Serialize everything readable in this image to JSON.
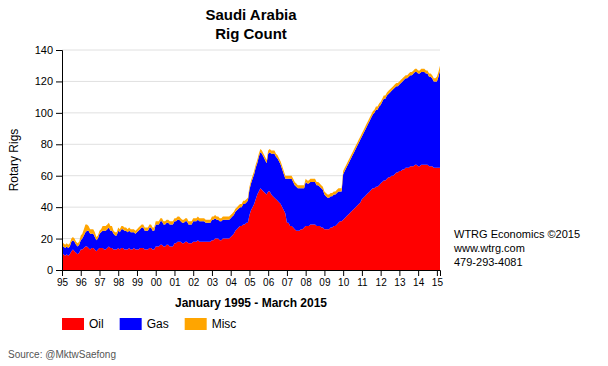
{
  "chart_data": {
    "type": "area",
    "stacked": true,
    "title": "Saudi Arabia",
    "subtitle": "Rig Count",
    "xlabel": "January 1995 - March 2015",
    "ylabel": "Rotary Rigs",
    "annotations": [
      "WTRG Economics ©2015",
      "www.wtrg.com",
      "479-293-4081",
      "Source: @MktwSaefong"
    ],
    "ylim": [
      0,
      140
    ],
    "yticks": [
      0,
      20,
      40,
      60,
      80,
      100,
      120,
      140
    ],
    "grid": true,
    "legend": "bottom",
    "categories": [
      "95",
      null,
      null,
      null,
      null,
      null,
      null,
      null,
      null,
      null,
      null,
      null,
      "96",
      null,
      null,
      null,
      null,
      null,
      null,
      null,
      null,
      null,
      null,
      null,
      "97",
      null,
      null,
      null,
      null,
      null,
      null,
      null,
      null,
      null,
      null,
      null,
      "98",
      null,
      null,
      null,
      null,
      null,
      null,
      null,
      null,
      null,
      null,
      null,
      "99",
      null,
      null,
      null,
      null,
      null,
      null,
      null,
      null,
      null,
      null,
      null,
      "00",
      null,
      null,
      null,
      null,
      null,
      null,
      null,
      null,
      null,
      null,
      null,
      "01",
      null,
      null,
      null,
      null,
      null,
      null,
      null,
      null,
      null,
      null,
      null,
      "02",
      null,
      null,
      null,
      null,
      null,
      null,
      null,
      null,
      null,
      null,
      null,
      "03",
      null,
      null,
      null,
      null,
      null,
      null,
      null,
      null,
      null,
      null,
      null,
      "04",
      null,
      null,
      null,
      null,
      null,
      null,
      null,
      null,
      null,
      null,
      null,
      "05",
      null,
      null,
      null,
      null,
      null,
      null,
      null,
      null,
      null,
      null,
      null,
      "06",
      null,
      null,
      null,
      null,
      null,
      null,
      null,
      null,
      null,
      null,
      null,
      "07",
      null,
      null,
      null,
      null,
      null,
      null,
      null,
      null,
      null,
      null,
      null,
      "08",
      null,
      null,
      null,
      null,
      null,
      null,
      null,
      null,
      null,
      null,
      null,
      "09",
      null,
      null,
      null,
      null,
      null,
      null,
      null,
      null,
      null,
      null,
      null,
      "10",
      null,
      null,
      null,
      null,
      null,
      null,
      null,
      null,
      null,
      null,
      null,
      "11",
      null,
      null,
      null,
      null,
      null,
      null,
      null,
      null,
      null,
      null,
      null,
      "12",
      null,
      null,
      null,
      null,
      null,
      null,
      null,
      null,
      null,
      null,
      null,
      "13",
      null,
      null,
      null,
      null,
      null,
      null,
      null,
      null,
      null,
      null,
      null,
      "14",
      null,
      null,
      null,
      null,
      null,
      null,
      null,
      null,
      null,
      null,
      null,
      "15",
      null,
      null
    ],
    "series": [
      {
        "name": "Oil",
        "color": "#FF0000",
        "values": [
          10,
          10,
          9,
          10,
          9,
          10,
          12,
          13,
          12,
          11,
          10,
          11,
          13,
          13,
          14,
          15,
          15,
          14,
          13,
          14,
          14,
          13,
          12,
          13,
          14,
          14,
          14,
          13,
          13,
          14,
          15,
          14,
          14,
          13,
          13,
          13,
          14,
          13,
          14,
          14,
          13,
          13,
          13,
          14,
          13,
          13,
          14,
          13,
          13,
          13,
          14,
          14,
          14,
          13,
          13,
          13,
          14,
          14,
          13,
          13,
          15,
          15,
          15,
          16,
          16,
          15,
          15,
          16,
          16,
          15,
          15,
          15,
          17,
          17,
          18,
          18,
          18,
          17,
          17,
          18,
          18,
          17,
          17,
          17,
          18,
          18,
          18,
          19,
          18,
          18,
          18,
          18,
          18,
          18,
          18,
          18,
          19,
          19,
          20,
          20,
          20,
          19,
          19,
          20,
          20,
          20,
          20,
          20,
          21,
          22,
          23,
          25,
          26,
          27,
          28,
          28,
          29,
          29,
          30,
          30,
          35,
          38,
          40,
          42,
          45,
          48,
          50,
          52,
          51,
          50,
          49,
          48,
          50,
          50,
          48,
          47,
          46,
          45,
          44,
          43,
          42,
          40,
          38,
          36,
          30,
          30,
          28,
          28,
          27,
          26,
          25,
          25,
          25,
          26,
          26,
          27,
          28,
          28,
          28,
          29,
          29,
          29,
          29,
          28,
          28,
          28,
          27,
          27,
          26,
          26,
          26,
          26,
          27,
          27,
          28,
          28,
          29,
          30,
          31,
          31,
          32,
          33,
          34,
          35,
          36,
          37,
          38,
          39,
          40,
          41,
          42,
          43,
          45,
          46,
          47,
          48,
          49,
          50,
          51,
          52,
          52,
          53,
          53,
          54,
          55,
          56,
          57,
          57,
          58,
          59,
          59,
          60,
          60,
          61,
          62,
          62,
          63,
          63,
          64,
          64,
          65,
          65,
          65,
          66,
          66,
          66,
          67,
          67,
          66,
          66,
          67,
          67,
          67,
          67,
          67,
          66,
          66,
          66,
          65,
          65,
          65,
          65,
          65
        ]
      },
      {
        "name": "Gas",
        "color": "#0000FF",
        "values": [
          5,
          5,
          5,
          5,
          5,
          5,
          6,
          6,
          6,
          5,
          5,
          5,
          6,
          7,
          8,
          9,
          10,
          11,
          10,
          9,
          9,
          8,
          7,
          7,
          9,
          10,
          11,
          12,
          12,
          12,
          12,
          11,
          11,
          10,
          9,
          9,
          11,
          11,
          12,
          12,
          12,
          12,
          11,
          11,
          11,
          11,
          10,
          10,
          11,
          12,
          12,
          13,
          13,
          12,
          12,
          12,
          13,
          13,
          12,
          12,
          14,
          14,
          14,
          15,
          15,
          14,
          14,
          14,
          14,
          14,
          14,
          14,
          14,
          14,
          14,
          14,
          13,
          13,
          13,
          13,
          13,
          12,
          12,
          12,
          13,
          13,
          13,
          13,
          13,
          13,
          13,
          13,
          12,
          12,
          12,
          12,
          13,
          13,
          13,
          12,
          12,
          12,
          12,
          12,
          12,
          12,
          12,
          12,
          12,
          12,
          12,
          12,
          12,
          12,
          12,
          12,
          13,
          13,
          13,
          14,
          16,
          17,
          18,
          19,
          20,
          20,
          22,
          23,
          23,
          22,
          21,
          20,
          24,
          25,
          26,
          27,
          28,
          27,
          27,
          26,
          25,
          24,
          23,
          22,
          28,
          28,
          30,
          30,
          29,
          28,
          28,
          27,
          27,
          26,
          26,
          25,
          28,
          27,
          27,
          27,
          27,
          27,
          27,
          26,
          26,
          25,
          25,
          24,
          22,
          21,
          20,
          20,
          20,
          20,
          20,
          20,
          20,
          20,
          19,
          19,
          29,
          30,
          31,
          32,
          33,
          34,
          35,
          36,
          37,
          38,
          39,
          40,
          40,
          41,
          42,
          43,
          44,
          45,
          46,
          47,
          48,
          49,
          49,
          50,
          50,
          51,
          52,
          52,
          53,
          53,
          54,
          54,
          55,
          55,
          55,
          55,
          55,
          56,
          56,
          57,
          57,
          57,
          58,
          58,
          58,
          59,
          59,
          59,
          59,
          59,
          59,
          59,
          59,
          58,
          58,
          57,
          57,
          56,
          55,
          55,
          55,
          58,
          62
        ]
      },
      {
        "name": "Misc",
        "color": "#FFA500",
        "values": [
          2,
          2,
          2,
          2,
          2,
          2,
          2,
          2,
          2,
          2,
          2,
          2,
          3,
          3,
          4,
          5,
          4,
          3,
          3,
          3,
          3,
          3,
          2,
          2,
          2,
          2,
          3,
          3,
          3,
          3,
          3,
          3,
          3,
          2,
          2,
          2,
          2,
          2,
          2,
          2,
          2,
          2,
          2,
          2,
          2,
          2,
          2,
          2,
          2,
          2,
          2,
          2,
          2,
          2,
          2,
          2,
          2,
          2,
          2,
          2,
          2,
          2,
          2,
          2,
          2,
          2,
          2,
          2,
          2,
          2,
          2,
          2,
          2,
          2,
          2,
          2,
          2,
          2,
          2,
          2,
          2,
          2,
          2,
          2,
          2,
          2,
          2,
          2,
          2,
          2,
          2,
          2,
          2,
          2,
          2,
          2,
          2,
          2,
          2,
          2,
          2,
          2,
          2,
          2,
          2,
          2,
          2,
          2,
          2,
          2,
          2,
          2,
          2,
          2,
          2,
          2,
          2,
          2,
          2,
          2,
          2,
          2,
          2,
          2,
          2,
          2,
          2,
          2,
          2,
          2,
          2,
          2,
          2,
          2,
          2,
          2,
          2,
          2,
          2,
          2,
          2,
          2,
          2,
          2,
          2,
          2,
          2,
          2,
          2,
          2,
          2,
          2,
          2,
          2,
          2,
          2,
          2,
          2,
          2,
          2,
          2,
          2,
          2,
          2,
          2,
          2,
          2,
          2,
          2,
          2,
          2,
          2,
          2,
          2,
          2,
          2,
          2,
          2,
          2,
          2,
          2,
          2,
          2,
          2,
          2,
          2,
          2,
          2,
          2,
          2,
          2,
          2,
          2,
          2,
          2,
          2,
          2,
          2,
          2,
          2,
          2,
          2,
          2,
          2,
          2,
          2,
          2,
          2,
          2,
          2,
          2,
          2,
          2,
          2,
          2,
          2,
          2,
          2,
          2,
          2,
          2,
          2,
          2,
          2,
          2,
          2,
          2,
          2,
          2,
          2,
          2,
          2,
          2,
          2,
          2,
          2,
          2,
          2,
          2,
          2,
          3,
          3,
          3
        ]
      }
    ]
  }
}
